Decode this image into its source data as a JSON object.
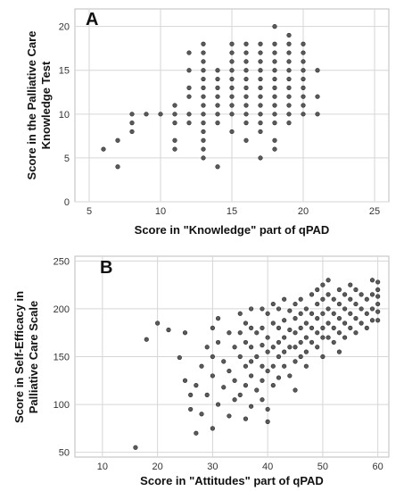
{
  "chart_data": [
    {
      "type": "scatter",
      "panel_label": "A",
      "xlabel": "Score in \"Knowledge\" part of qPAD",
      "ylabel_lines": [
        "Score in the Palliative Care",
        "Knowledge Test"
      ],
      "xlim": [
        4,
        26
      ],
      "ylim": [
        0,
        22
      ],
      "xticks": [
        5,
        10,
        15,
        20,
        25
      ],
      "yticks": [
        0,
        5,
        10,
        15,
        20
      ],
      "grid": true,
      "points": [
        [
          6,
          6
        ],
        [
          7,
          4
        ],
        [
          7,
          7
        ],
        [
          8,
          8
        ],
        [
          8,
          9
        ],
        [
          8,
          10
        ],
        [
          9,
          10
        ],
        [
          10,
          10
        ],
        [
          11,
          6
        ],
        [
          11,
          7
        ],
        [
          11,
          9
        ],
        [
          11,
          10
        ],
        [
          11,
          11
        ],
        [
          12,
          9
        ],
        [
          12,
          10
        ],
        [
          12,
          12
        ],
        [
          12,
          13
        ],
        [
          12,
          15
        ],
        [
          12,
          17
        ],
        [
          13,
          5
        ],
        [
          13,
          6
        ],
        [
          13,
          7
        ],
        [
          13,
          8
        ],
        [
          13,
          9
        ],
        [
          13,
          10
        ],
        [
          13,
          11
        ],
        [
          13,
          12
        ],
        [
          13,
          13
        ],
        [
          13,
          14
        ],
        [
          13,
          15
        ],
        [
          13,
          16
        ],
        [
          13,
          17
        ],
        [
          13,
          18
        ],
        [
          14,
          4
        ],
        [
          14,
          9
        ],
        [
          14,
          10
        ],
        [
          14,
          11
        ],
        [
          14,
          12
        ],
        [
          14,
          13
        ],
        [
          14,
          14
        ],
        [
          14,
          15
        ],
        [
          15,
          8
        ],
        [
          15,
          10
        ],
        [
          15,
          11
        ],
        [
          15,
          12
        ],
        [
          15,
          13
        ],
        [
          15,
          14
        ],
        [
          15,
          15
        ],
        [
          15,
          16
        ],
        [
          15,
          17
        ],
        [
          15,
          18
        ],
        [
          16,
          7
        ],
        [
          16,
          9
        ],
        [
          16,
          10
        ],
        [
          16,
          11
        ],
        [
          16,
          12
        ],
        [
          16,
          13
        ],
        [
          16,
          14
        ],
        [
          16,
          15
        ],
        [
          16,
          16
        ],
        [
          16,
          17
        ],
        [
          16,
          18
        ],
        [
          17,
          5
        ],
        [
          17,
          8
        ],
        [
          17,
          9
        ],
        [
          17,
          10
        ],
        [
          17,
          11
        ],
        [
          17,
          12
        ],
        [
          17,
          13
        ],
        [
          17,
          14
        ],
        [
          17,
          15
        ],
        [
          17,
          16
        ],
        [
          17,
          17
        ],
        [
          17,
          18
        ],
        [
          18,
          6
        ],
        [
          18,
          7
        ],
        [
          18,
          9
        ],
        [
          18,
          10
        ],
        [
          18,
          11
        ],
        [
          18,
          12
        ],
        [
          18,
          13
        ],
        [
          18,
          14
        ],
        [
          18,
          15
        ],
        [
          18,
          16
        ],
        [
          18,
          17
        ],
        [
          18,
          18
        ],
        [
          18,
          20
        ],
        [
          19,
          9
        ],
        [
          19,
          10
        ],
        [
          19,
          11
        ],
        [
          19,
          12
        ],
        [
          19,
          13
        ],
        [
          19,
          14
        ],
        [
          19,
          15
        ],
        [
          19,
          16
        ],
        [
          19,
          17
        ],
        [
          19,
          18
        ],
        [
          19,
          19
        ],
        [
          20,
          10
        ],
        [
          20,
          11
        ],
        [
          20,
          12
        ],
        [
          20,
          13
        ],
        [
          20,
          14
        ],
        [
          20,
          15
        ],
        [
          20,
          16
        ],
        [
          20,
          17
        ],
        [
          20,
          18
        ],
        [
          21,
          10
        ],
        [
          21,
          12
        ],
        [
          21,
          15
        ]
      ]
    },
    {
      "type": "scatter",
      "panel_label": "B",
      "xlabel": "Score in \"Attitudes\" part of qPAD",
      "ylabel_lines": [
        "Score in Self-Efficacy in",
        "Palliative Care Scale"
      ],
      "xlim": [
        5,
        62
      ],
      "ylim": [
        45,
        255
      ],
      "xticks": [
        10,
        20,
        30,
        40,
        50,
        60
      ],
      "yticks": [
        50,
        100,
        150,
        200,
        250
      ],
      "grid": true,
      "points": [
        [
          16,
          55
        ],
        [
          18,
          168
        ],
        [
          20,
          185
        ],
        [
          22,
          178
        ],
        [
          24,
          149
        ],
        [
          25,
          175
        ],
        [
          25,
          125
        ],
        [
          26,
          110
        ],
        [
          26,
          95
        ],
        [
          27,
          120
        ],
        [
          27,
          70
        ],
        [
          28,
          140
        ],
        [
          28,
          90
        ],
        [
          29,
          160
        ],
        [
          29,
          110
        ],
        [
          30,
          180
        ],
        [
          30,
          130
        ],
        [
          30,
          150
        ],
        [
          30,
          75
        ],
        [
          31,
          190
        ],
        [
          31,
          165
        ],
        [
          31,
          100
        ],
        [
          32,
          145
        ],
        [
          32,
          118
        ],
        [
          33,
          175
        ],
        [
          33,
          135
        ],
        [
          33,
          88
        ],
        [
          34,
          160
        ],
        [
          34,
          125
        ],
        [
          34,
          105
        ],
        [
          35,
          195
        ],
        [
          35,
          175
        ],
        [
          35,
          150
        ],
        [
          35,
          110
        ],
        [
          36,
          185
        ],
        [
          36,
          165
        ],
        [
          36,
          140
        ],
        [
          36,
          120
        ],
        [
          36,
          85
        ],
        [
          37,
          200
        ],
        [
          37,
          180
        ],
        [
          37,
          160
        ],
        [
          37,
          145
        ],
        [
          37,
          130
        ],
        [
          37,
          98
        ],
        [
          38,
          175
        ],
        [
          38,
          150
        ],
        [
          38,
          115
        ],
        [
          39,
          200
        ],
        [
          39,
          180
        ],
        [
          39,
          162
        ],
        [
          39,
          140
        ],
        [
          39,
          125
        ],
        [
          39,
          105
        ],
        [
          40,
          195
        ],
        [
          40,
          170
        ],
        [
          40,
          155
        ],
        [
          40,
          135
        ],
        [
          40,
          95
        ],
        [
          40,
          82
        ],
        [
          41,
          205
        ],
        [
          41,
          185
        ],
        [
          41,
          160
        ],
        [
          41,
          140
        ],
        [
          41,
          120
        ],
        [
          42,
          200
        ],
        [
          42,
          180
        ],
        [
          42,
          165
        ],
        [
          42,
          150
        ],
        [
          42,
          128
        ],
        [
          43,
          210
        ],
        [
          43,
          188
        ],
        [
          43,
          170
        ],
        [
          43,
          155
        ],
        [
          43,
          140
        ],
        [
          44,
          198
        ],
        [
          44,
          178
        ],
        [
          44,
          160
        ],
        [
          44,
          130
        ],
        [
          45,
          205
        ],
        [
          45,
          190
        ],
        [
          45,
          175
        ],
        [
          45,
          160
        ],
        [
          45,
          145
        ],
        [
          45,
          115
        ],
        [
          46,
          210
        ],
        [
          46,
          195
        ],
        [
          46,
          180
        ],
        [
          46,
          165
        ],
        [
          46,
          150
        ],
        [
          47,
          200
        ],
        [
          47,
          185
        ],
        [
          47,
          170
        ],
        [
          47,
          155
        ],
        [
          47,
          140
        ],
        [
          48,
          215
        ],
        [
          48,
          195
        ],
        [
          48,
          180
        ],
        [
          48,
          165
        ],
        [
          49,
          220
        ],
        [
          49,
          205
        ],
        [
          49,
          190
        ],
        [
          49,
          175
        ],
        [
          49,
          160
        ],
        [
          50,
          225
        ],
        [
          50,
          210
        ],
        [
          50,
          195
        ],
        [
          50,
          180
        ],
        [
          50,
          170
        ],
        [
          50,
          150
        ],
        [
          51,
          230
        ],
        [
          51,
          215
        ],
        [
          51,
          200
        ],
        [
          51,
          185
        ],
        [
          51,
          170
        ],
        [
          52,
          210
        ],
        [
          52,
          195
        ],
        [
          52,
          180
        ],
        [
          52,
          165
        ],
        [
          53,
          220
        ],
        [
          53,
          205
        ],
        [
          53,
          190
        ],
        [
          53,
          175
        ],
        [
          53,
          155
        ],
        [
          54,
          215
        ],
        [
          54,
          200
        ],
        [
          54,
          185
        ],
        [
          54,
          170
        ],
        [
          55,
          225
        ],
        [
          55,
          210
        ],
        [
          55,
          195
        ],
        [
          55,
          180
        ],
        [
          56,
          220
        ],
        [
          56,
          205
        ],
        [
          56,
          190
        ],
        [
          56,
          175
        ],
        [
          57,
          215
        ],
        [
          57,
          200
        ],
        [
          57,
          185
        ],
        [
          58,
          210
        ],
        [
          58,
          195
        ],
        [
          58,
          180
        ],
        [
          59,
          230
        ],
        [
          59,
          215
        ],
        [
          59,
          200
        ],
        [
          59,
          188
        ],
        [
          60,
          228
        ],
        [
          60,
          220
        ],
        [
          60,
          213
        ],
        [
          60,
          205
        ],
        [
          60,
          197
        ],
        [
          60,
          188
        ]
      ]
    }
  ]
}
